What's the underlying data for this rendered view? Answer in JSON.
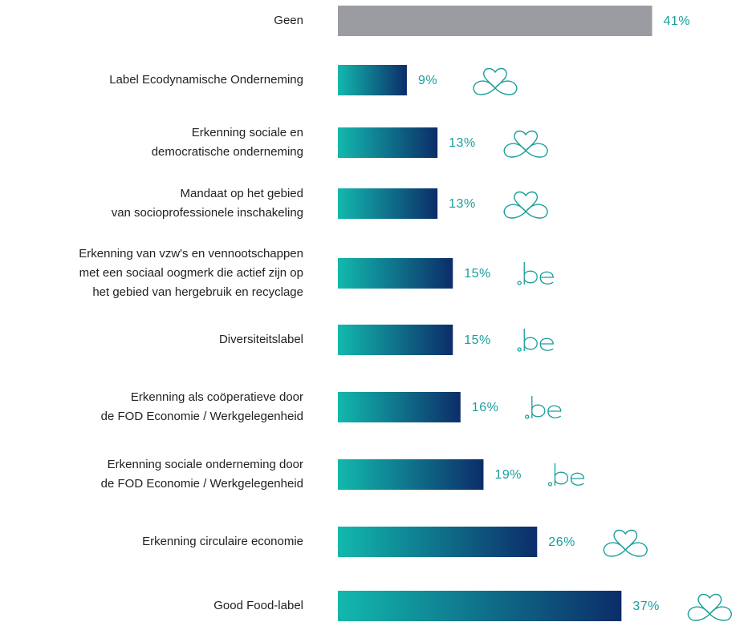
{
  "chart_data": {
    "type": "hbar",
    "categories": [
      [
        "Geen"
      ],
      [
        "Label Ecodynamische Onderneming"
      ],
      [
        "Erkenning sociale en",
        "democratische onderneming"
      ],
      [
        "Mandaat op het gebied",
        "van socioprofessionele inschakeling"
      ],
      [
        "Erkenning van vzw's en vennootschappen",
        "met een sociaal oogmerk die actief zijn op",
        "het gebied van hergebruik en recyclage"
      ],
      [
        "Diversiteitslabel"
      ],
      [
        "Erkenning als coöperatieve door",
        "de FOD Economie / Werkgelegenheid"
      ],
      [
        "Erkenning sociale onderneming door",
        "de FOD Economie / Werkgelegenheid"
      ],
      [
        "Erkenning circulaire economie"
      ],
      [
        "Good Food-label"
      ]
    ],
    "values": [
      41,
      9,
      13,
      13,
      15,
      15,
      16,
      19,
      26,
      37
    ],
    "value_labels": [
      "41%",
      "9%",
      "13%",
      "13%",
      "15%",
      "15%",
      "16%",
      "19%",
      "26%",
      "37%"
    ],
    "colors": [
      "#9b9ba2",
      [
        "#12b8ad",
        "#0c2d69"
      ],
      [
        "#12b8ad",
        "#0c2d69"
      ],
      [
        "#12b8ad",
        "#0c2d69"
      ],
      [
        "#12b8ad",
        "#0c2d69"
      ],
      [
        "#12b8ad",
        "#0c2d69"
      ],
      [
        "#12b8ad",
        "#0c2d69"
      ],
      [
        "#12b8ad",
        "#0c2d69"
      ],
      [
        "#12b8ad",
        "#0c2d69"
      ],
      [
        "#12b8ad",
        "#0c2d69"
      ]
    ],
    "label_color": "#1a9e9c"
  }
}
